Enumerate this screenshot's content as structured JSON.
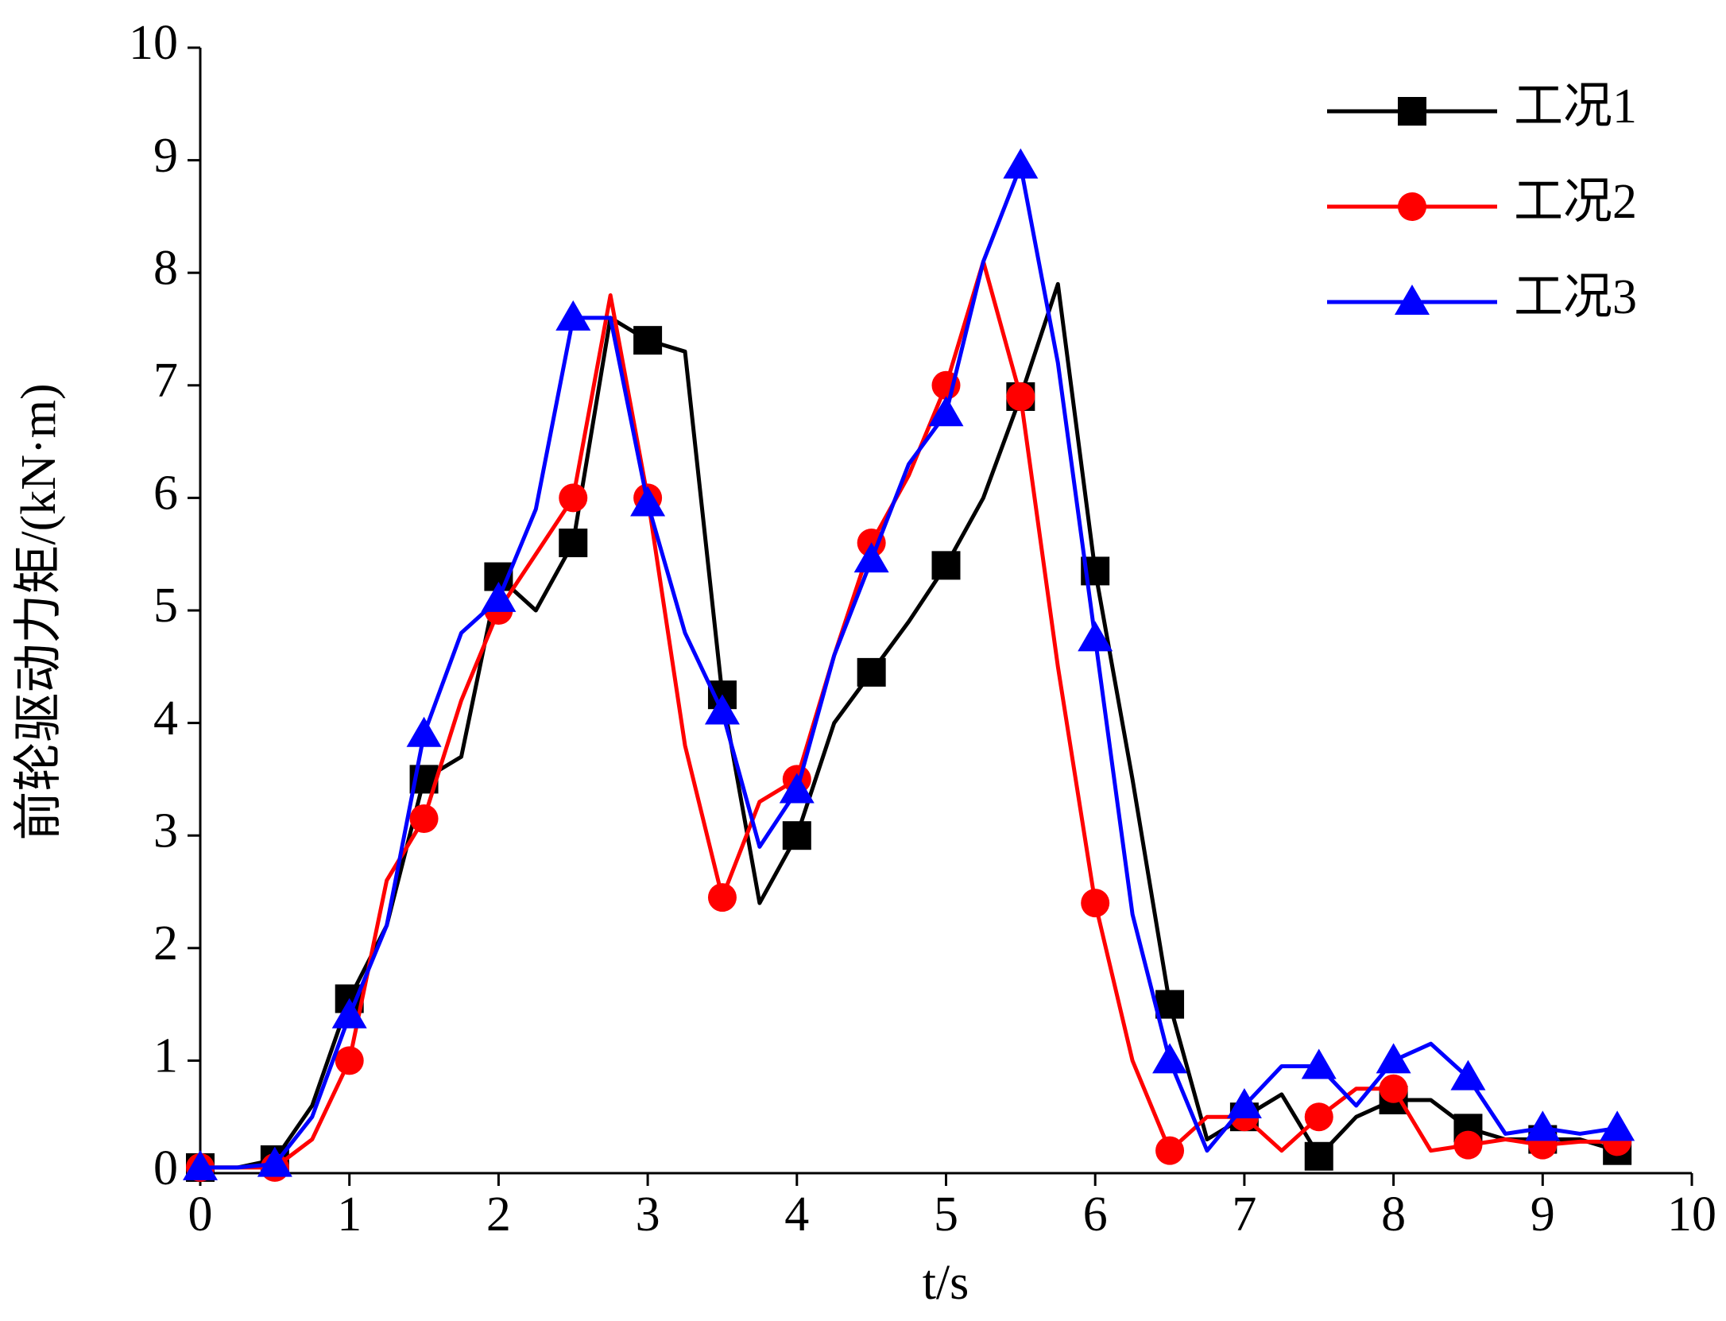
{
  "chart_data": {
    "type": "line",
    "x_label": "t/s",
    "y_label": "前轮驱动力矩/(kN·m)",
    "x": [
      0,
      0.25,
      0.5,
      0.75,
      1,
      1.25,
      1.5,
      1.75,
      2,
      2.25,
      2.5,
      2.75,
      3,
      3.25,
      3.5,
      3.75,
      4,
      4.25,
      4.5,
      4.75,
      5,
      5.25,
      5.5,
      5.75,
      6,
      6.25,
      6.5,
      6.75,
      7,
      7.25,
      7.5,
      7.75,
      8,
      8.25,
      8.5,
      8.75,
      9,
      9.25,
      9.5
    ],
    "series": [
      {
        "name": "工况1",
        "color": "#000000",
        "marker": "square",
        "values": [
          0.05,
          0.05,
          0.12,
          0.6,
          1.55,
          2.2,
          3.5,
          3.7,
          5.3,
          5.0,
          5.6,
          7.6,
          7.4,
          7.3,
          4.25,
          2.4,
          3.0,
          4.0,
          4.45,
          4.9,
          5.4,
          6.0,
          6.9,
          7.9,
          5.35,
          3.5,
          1.5,
          0.3,
          0.5,
          0.7,
          0.15,
          0.5,
          0.65,
          0.65,
          0.4,
          0.3,
          0.3,
          0.3,
          0.2
        ]
      },
      {
        "name": "工况2",
        "color": "#ff0000",
        "marker": "circle",
        "values": [
          0.05,
          0.05,
          0.05,
          0.3,
          1.0,
          2.6,
          3.15,
          4.2,
          5.0,
          5.5,
          6.0,
          7.8,
          6.0,
          3.8,
          2.45,
          3.3,
          3.5,
          4.6,
          5.6,
          6.2,
          7.0,
          8.1,
          6.9,
          4.5,
          2.4,
          1.0,
          0.2,
          0.5,
          0.5,
          0.2,
          0.5,
          0.75,
          0.75,
          0.2,
          0.25,
          0.3,
          0.25,
          0.28,
          0.28
        ]
      },
      {
        "name": "工况3",
        "color": "#0000ff",
        "marker": "triangle",
        "values": [
          0.05,
          0.05,
          0.08,
          0.5,
          1.4,
          2.2,
          3.9,
          4.8,
          5.1,
          5.9,
          7.6,
          7.6,
          5.95,
          4.8,
          4.1,
          2.9,
          3.4,
          4.6,
          5.45,
          6.3,
          6.75,
          8.1,
          8.95,
          7.2,
          4.75,
          2.3,
          1.0,
          0.2,
          0.6,
          0.95,
          0.95,
          0.6,
          1.0,
          1.15,
          0.85,
          0.35,
          0.4,
          0.35,
          0.4
        ]
      }
    ],
    "xlim": [
      0,
      10
    ],
    "xticks": [
      0,
      1,
      2,
      3,
      4,
      5,
      6,
      7,
      8,
      9,
      10
    ],
    "ylim": [
      0,
      10
    ],
    "yticks": [
      0,
      1,
      2,
      3,
      4,
      5,
      6,
      7,
      8,
      9,
      10
    ],
    "legend": "upper right",
    "grid": false
  }
}
